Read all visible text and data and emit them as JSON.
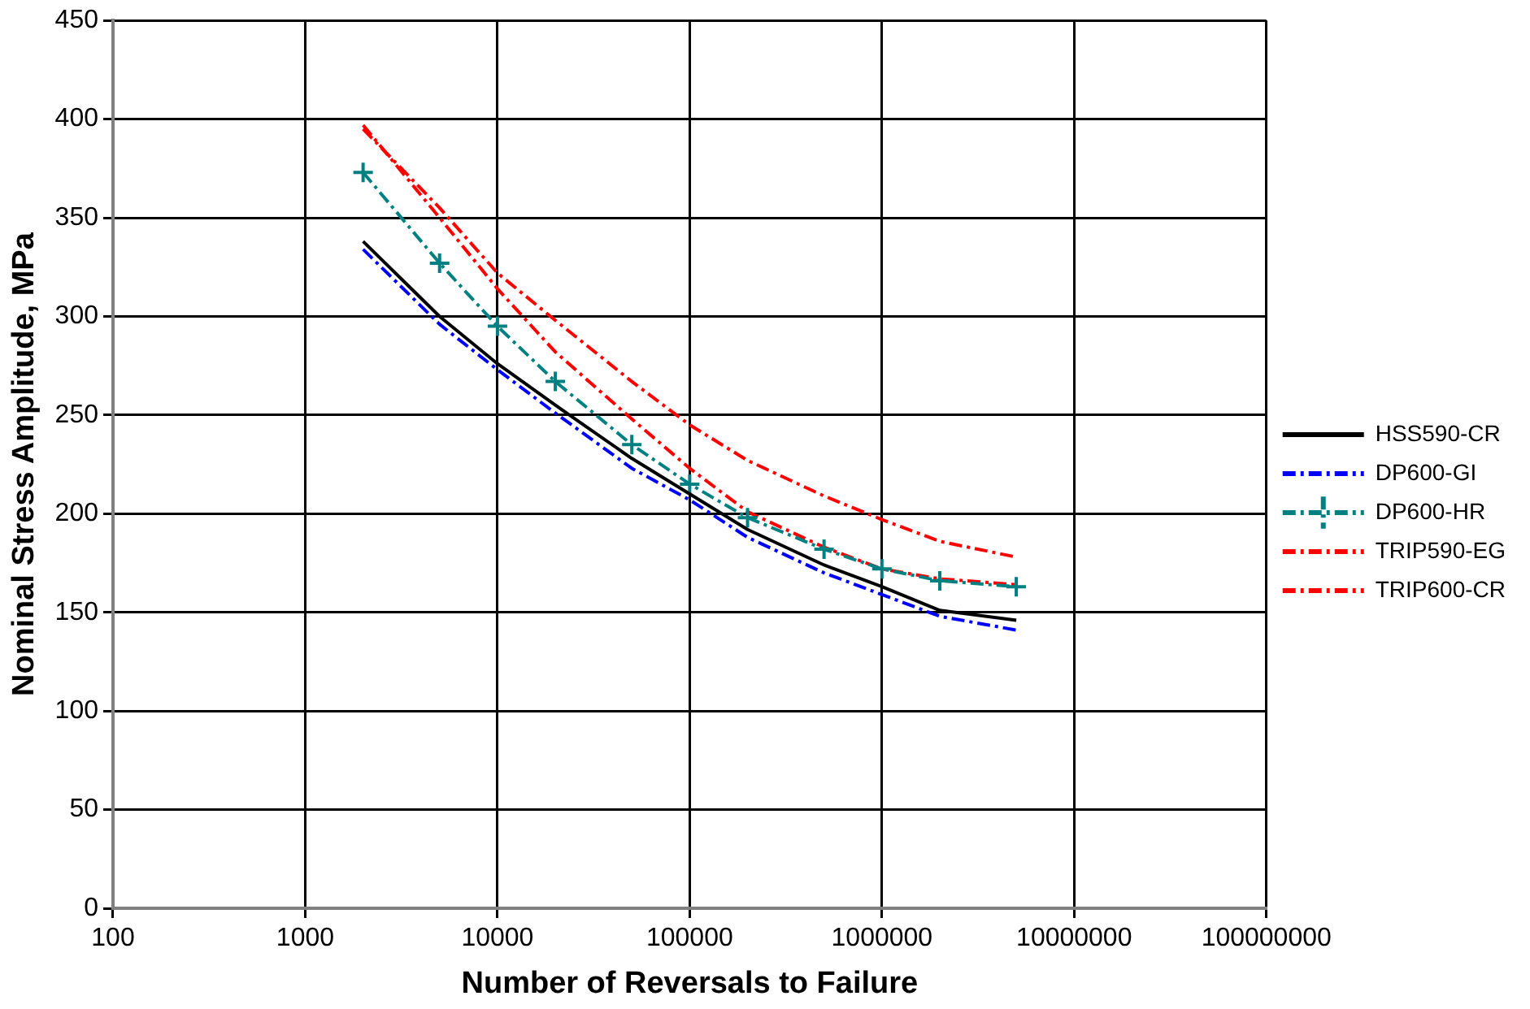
{
  "chart_data": {
    "type": "line",
    "xlabel": "Number of Reversals to Failure",
    "ylabel": "Nominal Stress Amplitude, MPa",
    "log": "x",
    "x": [
      2000,
      5000,
      10000,
      20000,
      50000,
      100000,
      200000,
      500000,
      1000000,
      2000000,
      5000000
    ],
    "xlim": [
      100,
      100000000
    ],
    "xticks": [
      100,
      1000,
      10000,
      100000,
      1000000,
      10000000,
      100000000
    ],
    "ylim": [
      0,
      450
    ],
    "yticks": [
      0,
      50,
      100,
      150,
      200,
      250,
      300,
      350,
      400,
      450
    ],
    "grid": true,
    "legend": "right",
    "marker": "none",
    "series": [
      {
        "name": "HSS590-CR",
        "color": "#000000",
        "line_style": "solid",
        "values": [
          338,
          300,
          276,
          255,
          228,
          210,
          192,
          174,
          163,
          151,
          146
        ]
      },
      {
        "name": "DP600-GI",
        "color": "#0000ff",
        "line_style": "dashed",
        "values": [
          334,
          296,
          273,
          251,
          223,
          207,
          188,
          170,
          159,
          148,
          141
        ]
      },
      {
        "name": "DP600-HR",
        "color": "#008080",
        "line_style": "dashed",
        "marker": "cross",
        "values": [
          373,
          327,
          295,
          267,
          235,
          215,
          198,
          182,
          172,
          166,
          163
        ]
      },
      {
        "name": "TRIP590-EG",
        "color": "#ff0000",
        "line_style": "dashed",
        "values": [
          395,
          355,
          322,
          298,
          267,
          245,
          227,
          209,
          197,
          186,
          178
        ]
      },
      {
        "name": "TRIP600-CR",
        "color": "#ff0000",
        "line_style": "dashed",
        "values": [
          397,
          350,
          314,
          282,
          248,
          223,
          201,
          183,
          172,
          167,
          164
        ]
      }
    ]
  }
}
